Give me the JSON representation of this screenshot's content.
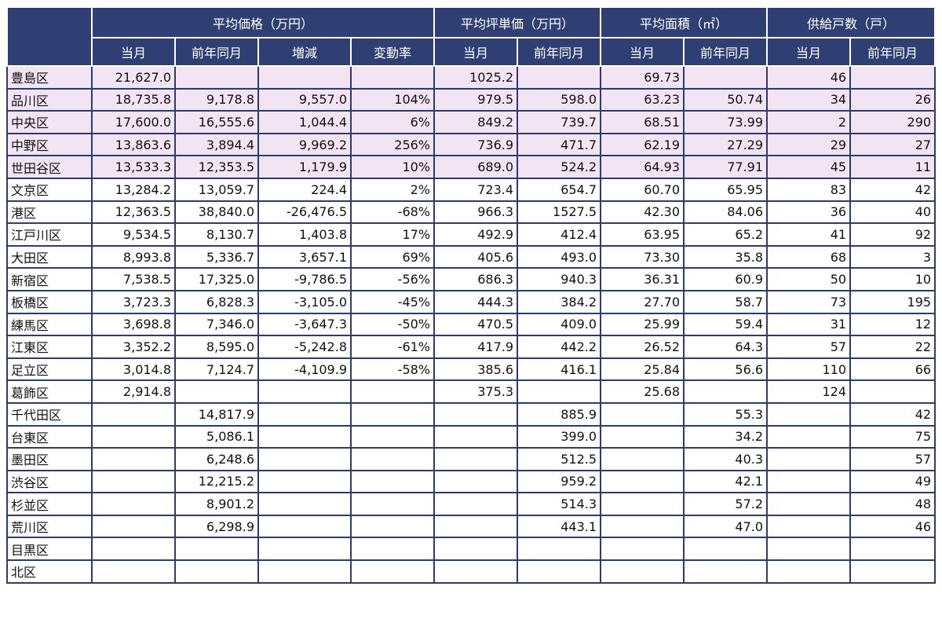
{
  "table": {
    "header_groups": [
      "平均価格（万円）",
      "平均坪単価（万円）",
      "平均面積（㎡）",
      "供給戸数（戸）"
    ],
    "subheaders": [
      "当月",
      "前年同月",
      "増減",
      "変動率",
      "当月",
      "前年同月",
      "当月",
      "前年同月",
      "当月",
      "前年同月"
    ],
    "rows": [
      [
        "豊島区",
        "21,627.0",
        null,
        null,
        null,
        "1025.2",
        null,
        "69.73",
        null,
        "46",
        null
      ],
      [
        "品川区",
        "18,735.8",
        "9,178.8",
        "9,557.0",
        "104%",
        "979.5",
        "598.0",
        "63.23",
        "50.74",
        "34",
        "26"
      ],
      [
        "中央区",
        "17,600.0",
        "16,555.6",
        "1,044.4",
        "6%",
        "849.2",
        "739.7",
        "68.51",
        "73.99",
        "2",
        "290"
      ],
      [
        "中野区",
        "13,863.6",
        "3,894.4",
        "9,969.2",
        "256%",
        "736.9",
        "471.7",
        "62.19",
        "27.29",
        "29",
        "27"
      ],
      [
        "世田谷区",
        "13,533.3",
        "12,353.5",
        "1,179.9",
        "10%",
        "689.0",
        "524.2",
        "64.93",
        "77.91",
        "45",
        "11"
      ],
      [
        "文京区",
        "13,284.2",
        "13,059.7",
        "224.4",
        "2%",
        "723.4",
        "654.7",
        "60.70",
        "65.95",
        "83",
        "42"
      ],
      [
        "港区",
        "12,363.5",
        "38,840.0",
        "-26,476.5",
        "-68%",
        "966.3",
        "1527.5",
        "42.30",
        "84.06",
        "36",
        "40"
      ],
      [
        "江戸川区",
        "9,534.5",
        "8,130.7",
        "1,403.8",
        "17%",
        "492.9",
        "412.4",
        "63.95",
        "65.2",
        "41",
        "92"
      ],
      [
        "大田区",
        "8,993.8",
        "5,336.7",
        "3,657.1",
        "69%",
        "405.6",
        "493.0",
        "73.30",
        "35.8",
        "68",
        "3"
      ],
      [
        "新宿区",
        "7,538.5",
        "17,325.0",
        "-9,786.5",
        "-56%",
        "686.3",
        "940.3",
        "36.31",
        "60.9",
        "50",
        "10"
      ],
      [
        "板橋区",
        "3,723.3",
        "6,828.3",
        "-3,105.0",
        "-45%",
        "444.3",
        "384.2",
        "27.70",
        "58.7",
        "73",
        "195"
      ],
      [
        "練馬区",
        "3,698.8",
        "7,346.0",
        "-3,647.3",
        "-50%",
        "470.5",
        "409.0",
        "25.99",
        "59.4",
        "31",
        "12"
      ],
      [
        "江東区",
        "3,352.2",
        "8,595.0",
        "-5,242.8",
        "-61%",
        "417.9",
        "442.2",
        "26.52",
        "64.3",
        "57",
        "22"
      ],
      [
        "足立区",
        "3,014.8",
        "7,124.7",
        "-4,109.9",
        "-58%",
        "385.6",
        "416.1",
        "25.84",
        "56.6",
        "110",
        "66"
      ],
      [
        "葛飾区",
        "2,914.8",
        null,
        null,
        null,
        "375.3",
        null,
        "25.68",
        null,
        "124",
        null
      ],
      [
        "千代田区",
        null,
        "14,817.9",
        null,
        null,
        null,
        "885.9",
        null,
        "55.3",
        null,
        "42"
      ],
      [
        "台東区",
        null,
        "5,086.1",
        null,
        null,
        null,
        "399.0",
        null,
        "34.2",
        null,
        "75"
      ],
      [
        "墨田区",
        null,
        "6,248.6",
        null,
        null,
        null,
        "512.5",
        null,
        "40.3",
        null,
        "57"
      ],
      [
        "渋谷区",
        null,
        "12,215.2",
        null,
        null,
        null,
        "959.2",
        null,
        "42.1",
        null,
        "49"
      ],
      [
        "杉並区",
        null,
        "8,901.2",
        null,
        null,
        null,
        "514.3",
        null,
        "57.2",
        null,
        "48"
      ],
      [
        "荒川区",
        null,
        "6,298.9",
        null,
        null,
        null,
        "443.1",
        null,
        "47.0",
        null,
        "46"
      ],
      [
        "目黒区",
        null,
        null,
        null,
        null,
        null,
        null,
        null,
        null,
        null,
        null
      ],
      [
        "北区",
        null,
        null,
        null,
        null,
        null,
        null,
        null,
        null,
        null,
        null
      ]
    ]
  }
}
